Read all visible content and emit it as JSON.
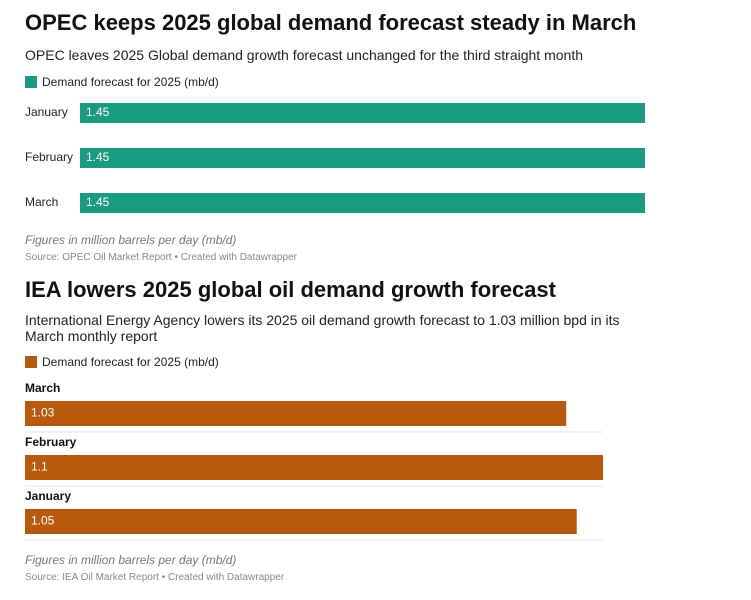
{
  "chart_data": [
    {
      "type": "bar",
      "title": "OPEC keeps 2025 global demand forecast steady in March",
      "subtitle": "OPEC leaves 2025 Global demand growth forecast unchanged for the third straight month",
      "categories": [
        "January",
        "February",
        "March"
      ],
      "series": [
        {
          "name": "Demand forecast for 2025 (mb/d)",
          "color": "#1a9a80",
          "values": [
            1.45,
            1.45,
            1.45
          ]
        }
      ],
      "note": "Figures in million barrels per day (mb/d)",
      "source": "Source: OPEC Oil Market Report • Created with Datawrapper"
    },
    {
      "type": "bar",
      "title": "IEA lowers 2025 global oil demand growth forecast",
      "subtitle": "International Energy Agency lowers its 2025 oil demand growth forecast to 1.03 million bpd in its March monthly report",
      "categories": [
        "March",
        "February",
        "January"
      ],
      "series": [
        {
          "name": "Demand forecast for 2025 (mb/d)",
          "color": "#b85a0d",
          "values": [
            1.03,
            1.1,
            1.05
          ]
        }
      ],
      "note": "Figures in million barrels per day (mb/d)",
      "source": "Source: IEA Oil Market Report • Created with Datawrapper"
    }
  ]
}
